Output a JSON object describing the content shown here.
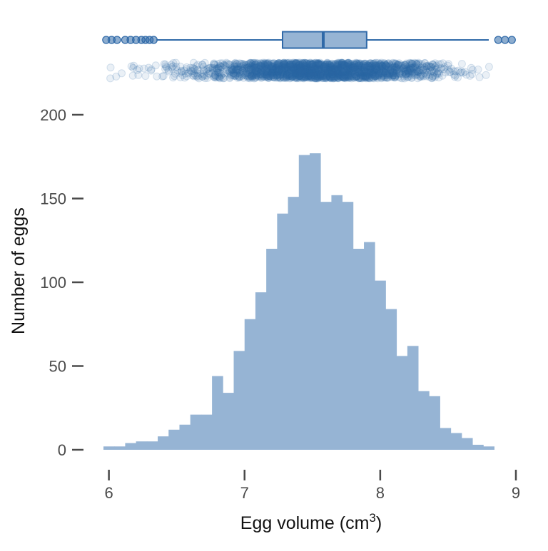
{
  "chart_data": {
    "type": "bar",
    "subtype": "histogram with boxplot and jittered strip plot",
    "xlabel_main": "Egg volume (cm",
    "xlabel_sup": "3",
    "xlabel_end": ")",
    "ylabel": "Number of eggs",
    "xlim": [
      5.96,
      9.0
    ],
    "ylim": [
      0,
      200
    ],
    "x_ticks": [
      6,
      7,
      8,
      9
    ],
    "y_ticks": [
      0,
      50,
      100,
      150,
      200
    ],
    "bin_width": 0.08,
    "bin_start": 5.96,
    "values": [
      2,
      2,
      4,
      5,
      5,
      8,
      12,
      15,
      21,
      21,
      44,
      34,
      59,
      78,
      94,
      120,
      141,
      151,
      176,
      177,
      148,
      152,
      148,
      120,
      124,
      101,
      84,
      56,
      62,
      35,
      32,
      13,
      10,
      7,
      3,
      2
    ],
    "boxplot": {
      "whisker_low": 6.35,
      "q1": 7.28,
      "median": 7.58,
      "q3": 7.9,
      "whisker_high": 8.8,
      "outliers": [
        5.98,
        6.02,
        6.06,
        6.12,
        6.16,
        6.2,
        6.24,
        6.27,
        6.3,
        6.33,
        8.87,
        8.92,
        8.97
      ]
    },
    "grid": false,
    "legend": "none",
    "colors": {
      "bar": "#96b4d4",
      "box_fill": "#96b4d4",
      "line": "#2f69a8",
      "points": "#2f69a8",
      "tick": "#4a4a4a"
    }
  }
}
